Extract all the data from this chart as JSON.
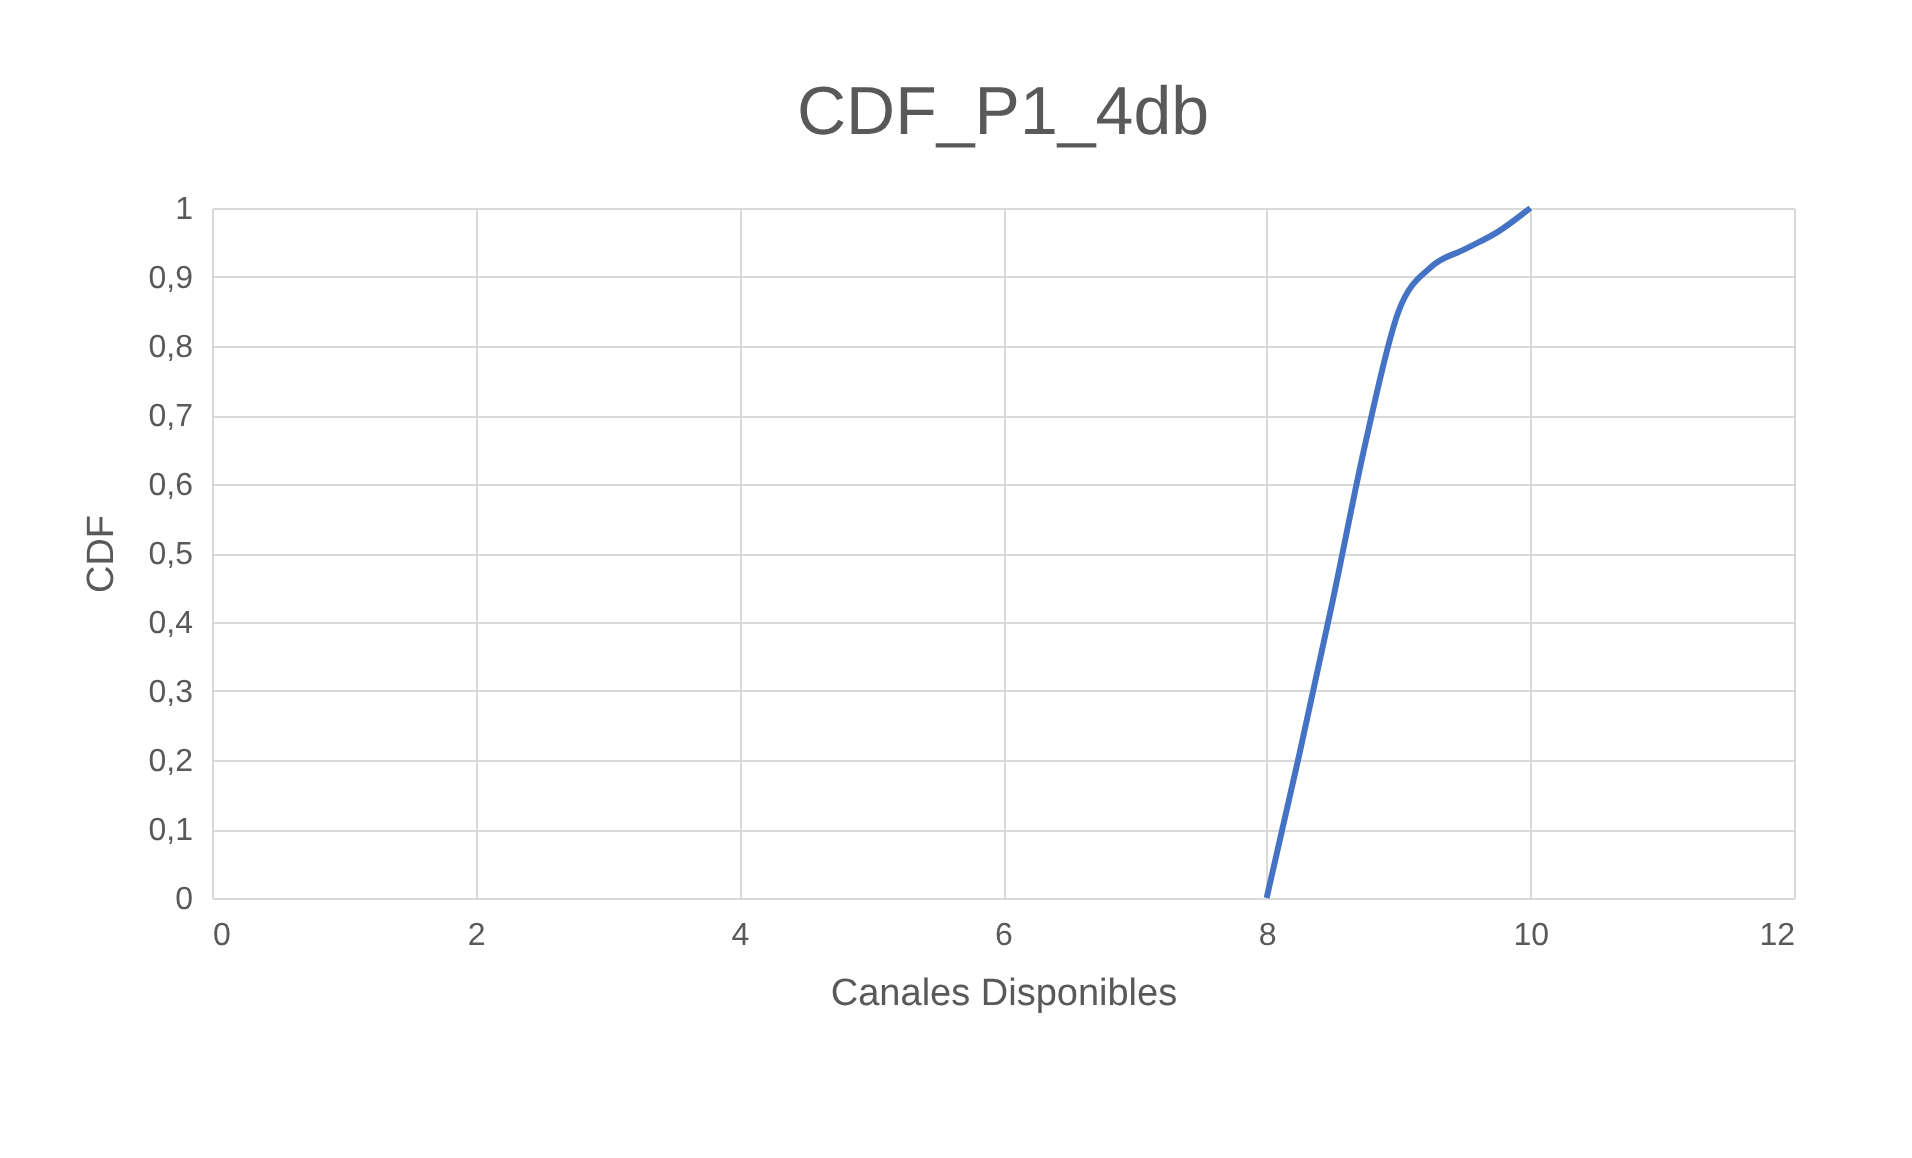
{
  "chart_data": {
    "type": "line",
    "title": "CDF_P1_4db",
    "xlabel": "Canales Disponibles",
    "ylabel": "CDF",
    "x": [
      8,
      8.25,
      8.5,
      8.75,
      9,
      9.25,
      9.5,
      9.75,
      10
    ],
    "series": [
      {
        "color": "#4472c4",
        "values": [
          0,
          0.21,
          0.43,
          0.66,
          0.85,
          0.915,
          0.94,
          0.965,
          1
        ]
      }
    ],
    "xlim": [
      0,
      12
    ],
    "xticks": [
      0,
      2,
      4,
      6,
      8,
      10,
      12
    ],
    "ylim": [
      0,
      1
    ],
    "yticks": [
      0,
      {
        "value": 0.1,
        "label": "0,1"
      },
      {
        "value": 0.2,
        "label": "0,2"
      },
      {
        "value": 0.3,
        "label": "0,3"
      },
      {
        "value": 0.4,
        "label": "0,4"
      },
      {
        "value": 0.5,
        "label": "0,5"
      },
      {
        "value": 0.6,
        "label": "0,6"
      },
      {
        "value": 0.7,
        "label": "0,7"
      },
      {
        "value": 0.8,
        "label": "0,8"
      },
      {
        "value": 0.9,
        "label": "0,9"
      },
      1
    ],
    "grid": true,
    "marker": "none",
    "line_style": "solid",
    "legend": false
  }
}
